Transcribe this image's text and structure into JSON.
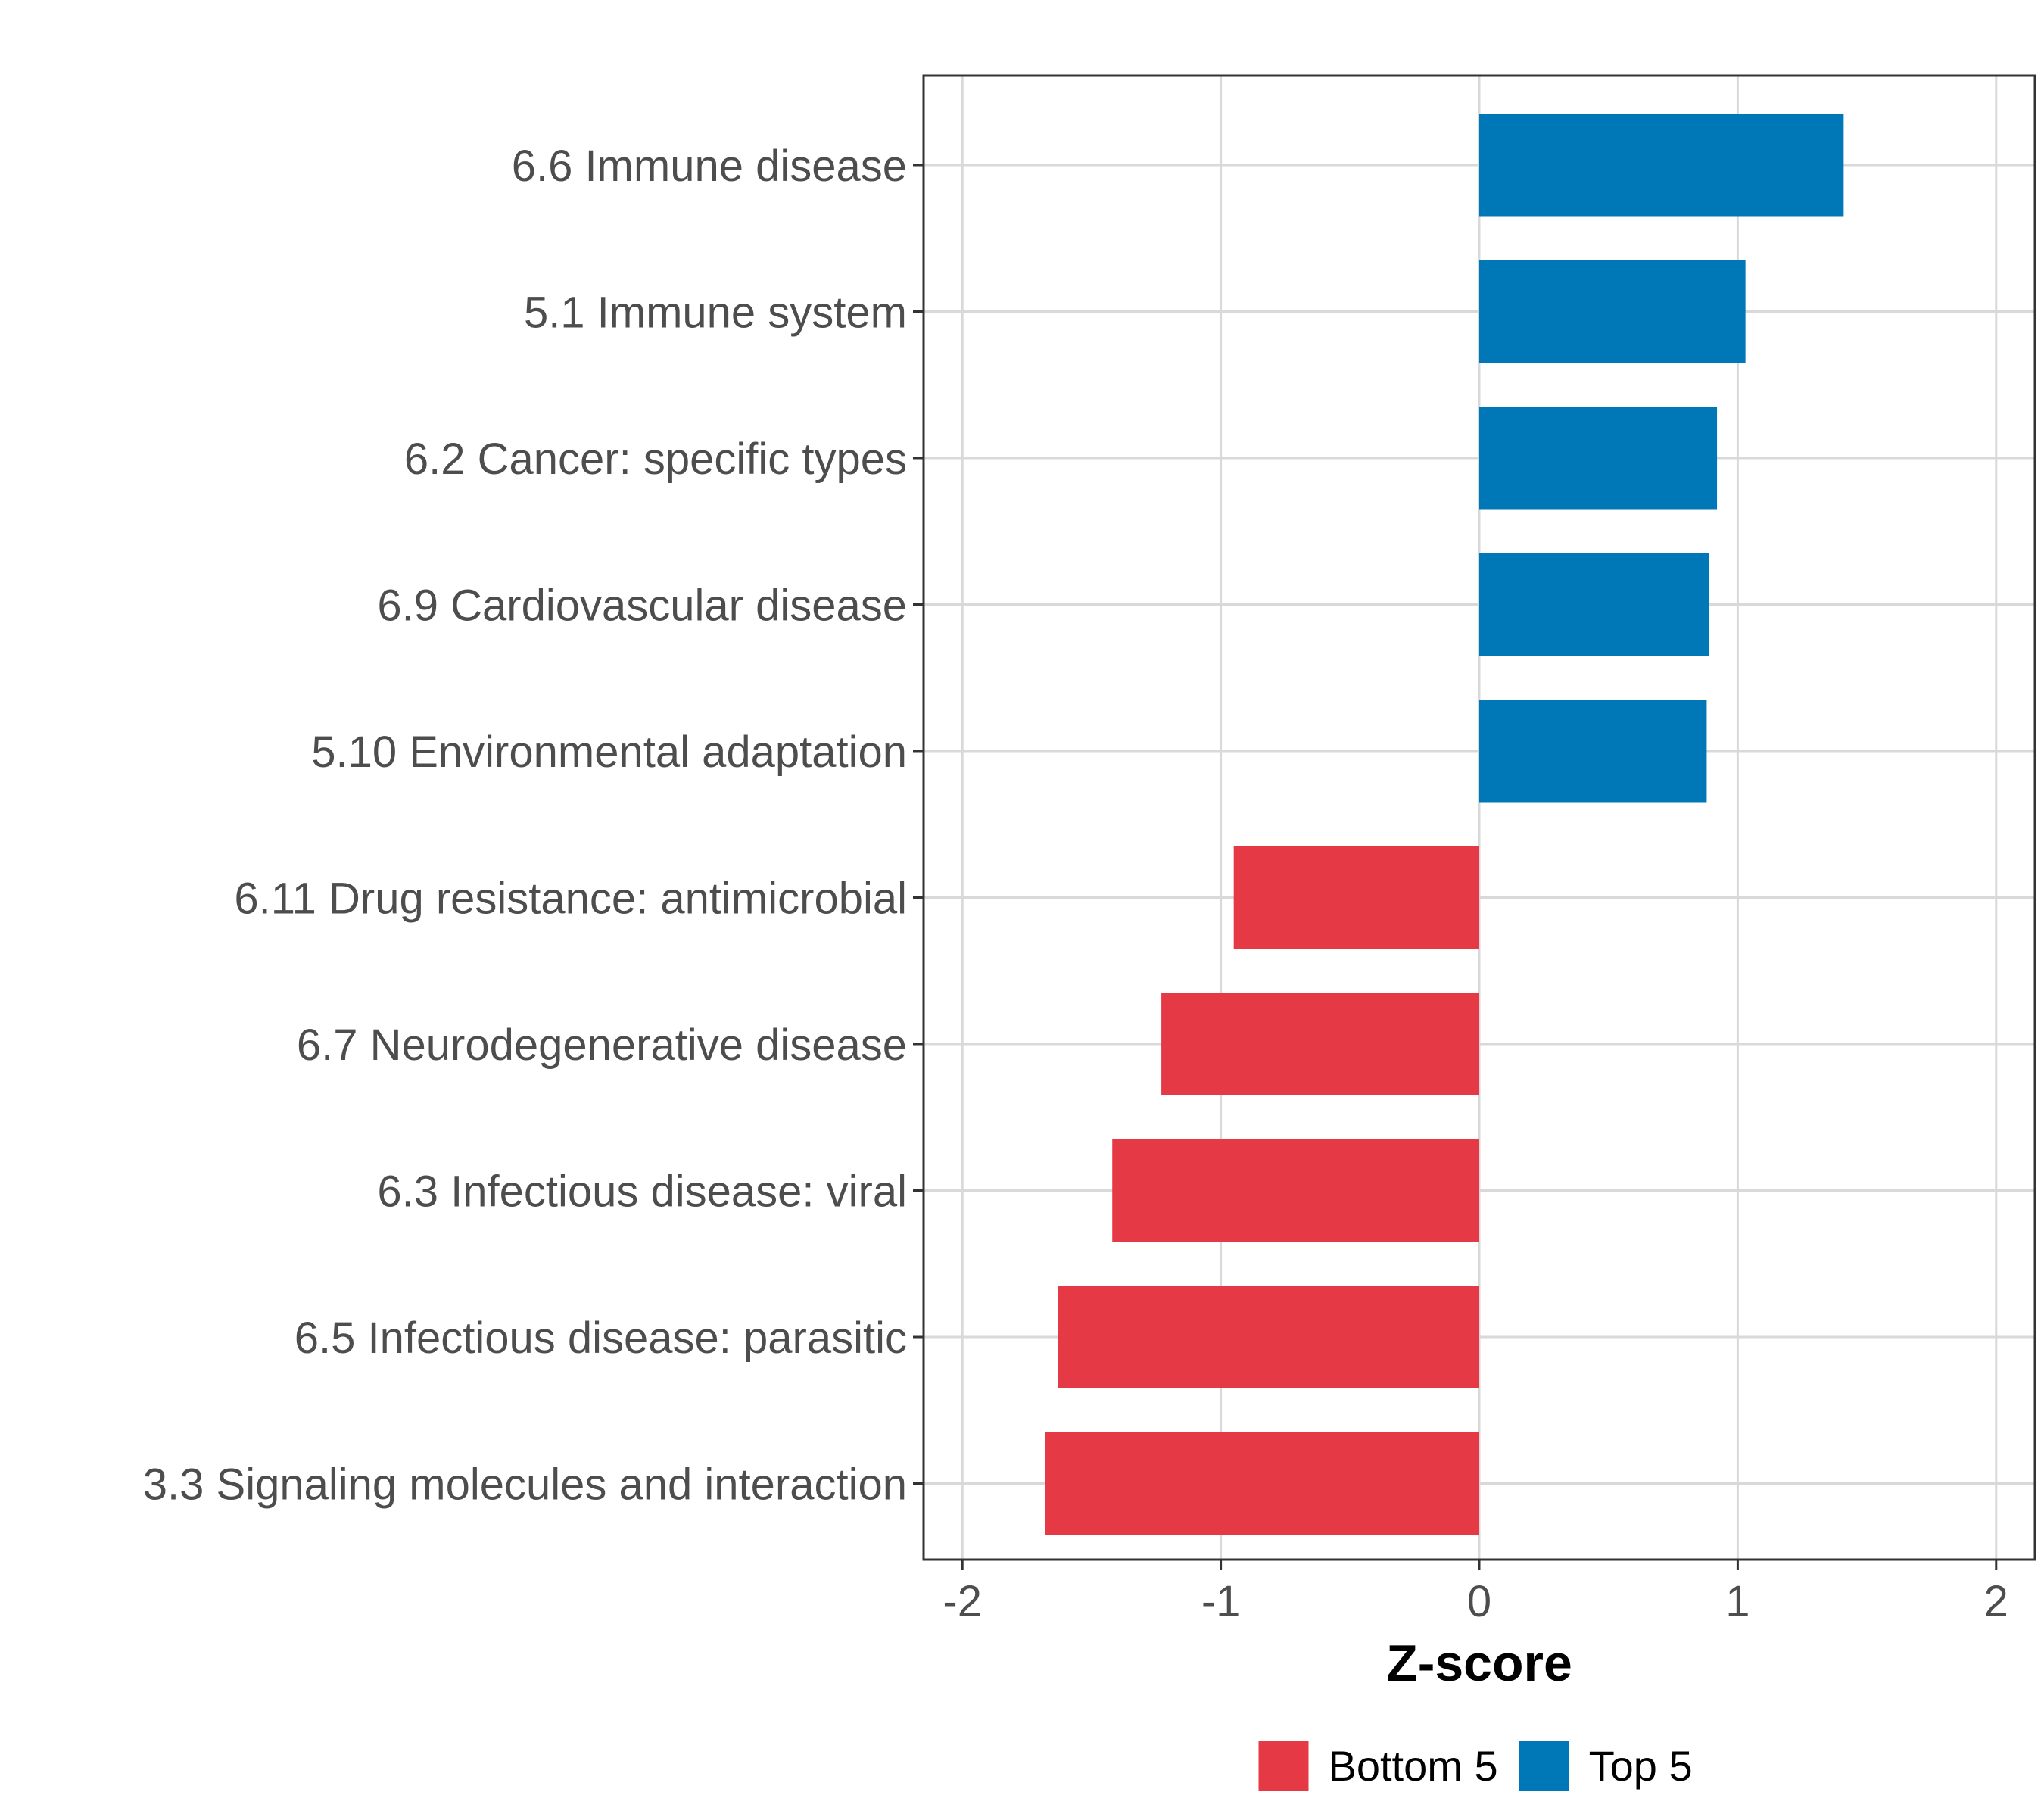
{
  "chart_data": {
    "type": "bar",
    "orientation": "horizontal",
    "title": "",
    "xlabel": "Z-score",
    "ylabel": "",
    "xlim": [
      -2.15,
      2.15
    ],
    "xticks": [
      -2,
      -1,
      0,
      1,
      2
    ],
    "xtick_labels": [
      "-2",
      "-1",
      "0",
      "1",
      "2"
    ],
    "grid": true,
    "categories": [
      "6.6 Immune disease",
      "5.1 Immune system",
      "6.2 Cancer: specific types",
      "6.9 Cardiovascular disease",
      "5.10 Environmental adaptation",
      "6.11 Drug resistance: antimicrobial",
      "6.7 Neurodegenerative disease",
      "6.3 Infectious disease: viral",
      "6.5 Infectious disease: parasitic",
      "3.3 Signaling molecules and interaction"
    ],
    "values": [
      1.41,
      1.03,
      0.92,
      0.89,
      0.88,
      -0.95,
      -1.23,
      -1.42,
      -1.63,
      -1.68
    ],
    "groups": [
      "Top 5",
      "Top 5",
      "Top 5",
      "Top 5",
      "Top 5",
      "Bottom 5",
      "Bottom 5",
      "Bottom 5",
      "Bottom 5",
      "Bottom 5"
    ],
    "legend": {
      "position": "bottom",
      "entries": [
        {
          "label": "Bottom 5",
          "color": "#E63946"
        },
        {
          "label": "Top 5",
          "color": "#0077B6"
        }
      ]
    },
    "colors": {
      "Top 5": "#0077B6",
      "Bottom 5": "#E63946"
    }
  }
}
